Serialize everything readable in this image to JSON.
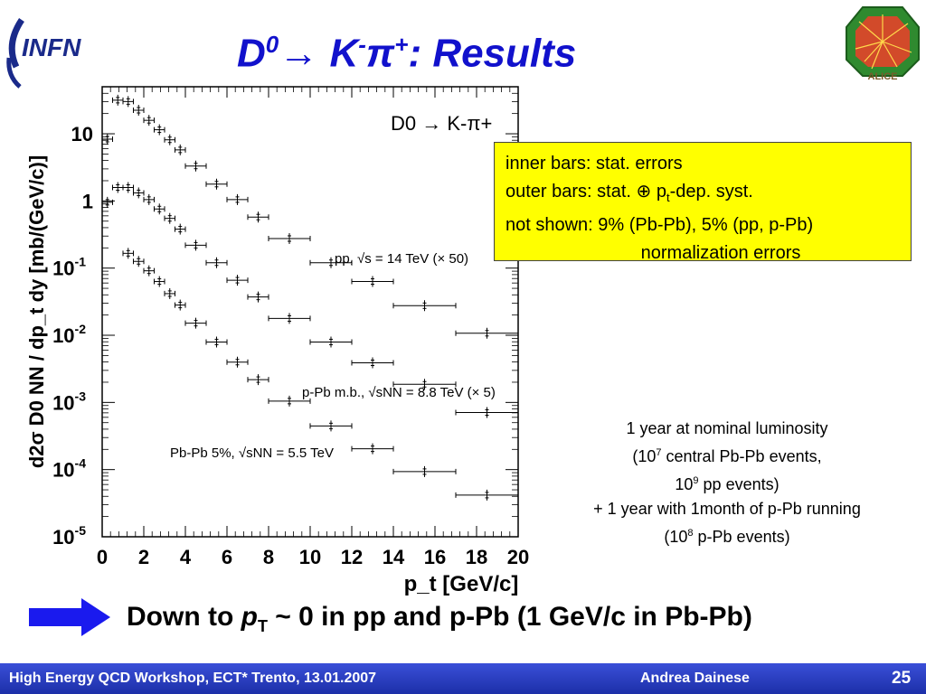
{
  "slide": {
    "title_a": "D",
    "title_sup0": "0",
    "title_arrow": "→",
    "title_b": " K",
    "title_sup1": "-",
    "title_pi": "π",
    "title_sup2": "+",
    "title_c": ": Results",
    "info_lines": [
      "inner bars: stat. errors",
      "outer bars: stat. ⊕ p",
      "not shown: 9% (Pb-Pb), 5% (pp, p-Pb)",
      "normalization errors"
    ],
    "info_sub": "t",
    "info_line2_tail": "-dep. syst.",
    "lumi_lines": [
      "1 year at nominal luminosity",
      "(10",
      "10",
      "+ 1 year with 1month of p-Pb running",
      "(10"
    ],
    "lumi_sups": [
      "7",
      "9",
      "8"
    ],
    "lumi_tails": [
      " central Pb-Pb events,",
      " pp events)",
      " p-Pb events)"
    ],
    "bottom_a": "Down to ",
    "bottom_p": "p",
    "bottom_sub": "T",
    "bottom_b": " ~ 0 in pp and p-Pb (1 GeV/c in Pb-Pb)",
    "footer_left": "High Energy QCD Workshop, ECT* Trento, 13.01.2007",
    "footer_mid": "Andrea Dainese",
    "footer_page": "25",
    "logo_infn": "INFN",
    "logo_alice": "ALICE",
    "arrow_icon": "right-arrow-icon",
    "accent": "#1111cc"
  },
  "chart_data": {
    "type": "scatter",
    "title": "",
    "plot_label": "D0 → K-π+",
    "xlabel": "p_t [GeV/c]",
    "ylabel": "d2σ D0 NN / dp_t dy [mb/(GeV/c)]",
    "xlim": [
      0,
      20
    ],
    "ylim_log10": [
      -5,
      1.7
    ],
    "log_y": true,
    "x_ticks": [
      "0",
      "2",
      "4",
      "6",
      "8",
      "10",
      "12",
      "14",
      "16",
      "18",
      "20"
    ],
    "y_ticks": [
      {
        "base": "10",
        "exp": "-5",
        "value": -5
      },
      {
        "base": "10",
        "exp": "-4",
        "value": -4
      },
      {
        "base": "10",
        "exp": "-3",
        "value": -3
      },
      {
        "base": "10",
        "exp": "-2",
        "value": -2
      },
      {
        "base": "10",
        "exp": "-1",
        "value": -1
      },
      {
        "base": "1",
        "exp": "",
        "value": 0
      },
      {
        "base": "10",
        "exp": "",
        "value": 1
      }
    ],
    "series": [
      {
        "name": "pp, √s = 14 TeV (× 50)",
        "points": [
          {
            "x": 0.25,
            "xerr": 0.25,
            "log10y": 0.92
          },
          {
            "x": 0.75,
            "xerr": 0.25,
            "log10y": 1.5
          },
          {
            "x": 1.25,
            "xerr": 0.25,
            "log10y": 1.48
          },
          {
            "x": 1.75,
            "xerr": 0.25,
            "log10y": 1.35
          },
          {
            "x": 2.25,
            "xerr": 0.25,
            "log10y": 1.2
          },
          {
            "x": 2.75,
            "xerr": 0.25,
            "log10y": 1.06
          },
          {
            "x": 3.25,
            "xerr": 0.25,
            "log10y": 0.91
          },
          {
            "x": 3.75,
            "xerr": 0.25,
            "log10y": 0.76
          },
          {
            "x": 4.5,
            "xerr": 0.5,
            "log10y": 0.52
          },
          {
            "x": 5.5,
            "xerr": 0.5,
            "log10y": 0.25
          },
          {
            "x": 6.5,
            "xerr": 0.5,
            "log10y": 0.02
          },
          {
            "x": 7.5,
            "xerr": 0.5,
            "log10y": -0.24
          },
          {
            "x": 9.0,
            "xerr": 1.0,
            "log10y": -0.56
          },
          {
            "x": 11.0,
            "xerr": 1.0,
            "log10y": -0.92
          },
          {
            "x": 13.0,
            "xerr": 1.0,
            "log10y": -1.2
          },
          {
            "x": 15.5,
            "xerr": 1.5,
            "log10y": -1.56
          },
          {
            "x": 18.5,
            "xerr": 1.5,
            "log10y": -1.97
          }
        ]
      },
      {
        "name": "p-Pb m.b., √sNN = 8.8 TeV (× 5)",
        "points": [
          {
            "x": 0.25,
            "xerr": 0.25,
            "log10y": -0.02
          },
          {
            "x": 0.75,
            "xerr": 0.25,
            "log10y": 0.2
          },
          {
            "x": 1.25,
            "xerr": 0.25,
            "log10y": 0.2
          },
          {
            "x": 1.75,
            "xerr": 0.25,
            "log10y": 0.12
          },
          {
            "x": 2.25,
            "xerr": 0.25,
            "log10y": 0.02
          },
          {
            "x": 2.75,
            "xerr": 0.25,
            "log10y": -0.12
          },
          {
            "x": 3.25,
            "xerr": 0.25,
            "log10y": -0.26
          },
          {
            "x": 3.75,
            "xerr": 0.25,
            "log10y": -0.42
          },
          {
            "x": 4.5,
            "xerr": 0.5,
            "log10y": -0.66
          },
          {
            "x": 5.5,
            "xerr": 0.5,
            "log10y": -0.92
          },
          {
            "x": 6.5,
            "xerr": 0.5,
            "log10y": -1.18
          },
          {
            "x": 7.5,
            "xerr": 0.5,
            "log10y": -1.43
          },
          {
            "x": 9.0,
            "xerr": 1.0,
            "log10y": -1.75
          },
          {
            "x": 11.0,
            "xerr": 1.0,
            "log10y": -2.1
          },
          {
            "x": 13.0,
            "xerr": 1.0,
            "log10y": -2.41
          },
          {
            "x": 15.5,
            "xerr": 1.5,
            "log10y": -2.73
          },
          {
            "x": 18.5,
            "xerr": 1.5,
            "log10y": -3.15
          }
        ]
      },
      {
        "name": "Pb-Pb 5%, √sNN = 5.5 TeV",
        "points": [
          {
            "x": 1.25,
            "xerr": 0.25,
            "log10y": -0.78
          },
          {
            "x": 1.75,
            "xerr": 0.25,
            "log10y": -0.9
          },
          {
            "x": 2.25,
            "xerr": 0.25,
            "log10y": -1.04
          },
          {
            "x": 2.75,
            "xerr": 0.25,
            "log10y": -1.2
          },
          {
            "x": 3.25,
            "xerr": 0.25,
            "log10y": -1.38
          },
          {
            "x": 3.75,
            "xerr": 0.25,
            "log10y": -1.55
          },
          {
            "x": 4.5,
            "xerr": 0.5,
            "log10y": -1.82
          },
          {
            "x": 5.5,
            "xerr": 0.5,
            "log10y": -2.1
          },
          {
            "x": 6.5,
            "xerr": 0.5,
            "log10y": -2.4
          },
          {
            "x": 7.5,
            "xerr": 0.5,
            "log10y": -2.66
          },
          {
            "x": 9.0,
            "xerr": 1.0,
            "log10y": -2.98
          },
          {
            "x": 11.0,
            "xerr": 1.0,
            "log10y": -3.35
          },
          {
            "x": 13.0,
            "xerr": 1.0,
            "log10y": -3.69
          },
          {
            "x": 15.5,
            "xerr": 1.5,
            "log10y": -4.03
          },
          {
            "x": 18.5,
            "xerr": 1.5,
            "log10y": -4.38
          }
        ]
      }
    ]
  }
}
